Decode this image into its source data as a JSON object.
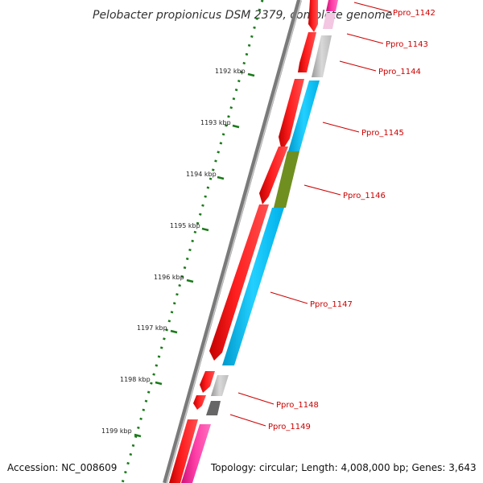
{
  "map": {
    "title": "Pelobacter propionicus DSM 2379, complete genome",
    "accession": "Accession: NC_008609",
    "summary": "Topology: circular; Length: 4,008,000 bp; Genes: 3,643"
  },
  "ticks": [
    "1192 kbp",
    "1193 kbp",
    "1194 kbp",
    "1195 kbp",
    "1196 kbp",
    "1197 kbp",
    "1198 kbp",
    "1199 kbp"
  ],
  "genes": [
    "Ppro_1142",
    "Ppro_1143",
    "Ppro_1144",
    "Ppro_1145",
    "Ppro_1146",
    "Ppro_1147",
    "Ppro_1148",
    "Ppro_1149"
  ],
  "colors": {
    "cds_forward": "#ff0000",
    "cds_reverse_blue": "#00c3ff",
    "cds_reverse_olive": "#6f8f20",
    "cds_pink": "#ff2a9c",
    "cds_grey": "#b8b8b8",
    "cds_dark_grey": "#666666",
    "backbone": "#777777",
    "tick_mark": "#1a7a1a",
    "label": "#cc0000"
  }
}
